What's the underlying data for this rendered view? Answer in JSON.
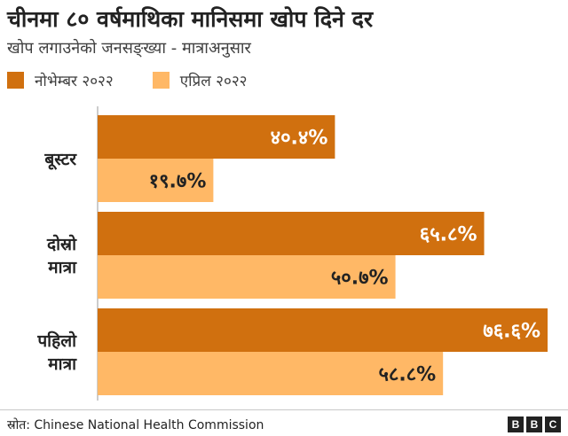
{
  "title": "चीनमा ८० वर्षमाथिका मानिसमा खोप दिने दर",
  "subtitle": "खोप लगाउनेको जनसङ्ख्या - मात्राअनुसार",
  "source": "स्रोत: Chinese National Health Commission",
  "logo": {
    "letters": [
      "B",
      "B",
      "C"
    ]
  },
  "colors": {
    "november": "#D0700F",
    "april": "#FFB866"
  },
  "chart_data": {
    "type": "bar",
    "orientation": "horizontal",
    "title": "चीनमा ८० वर्षमाथिका मानिसमा खोप दिने दर",
    "subtitle": "खोप लगाउनेको जनसङ्ख्या - मात्राअनुसार",
    "legend_position": "top-left",
    "grid": false,
    "xlim": [
      0,
      100
    ],
    "categories": [
      {
        "lines": [
          "बूस्टर"
        ]
      },
      {
        "lines": [
          "दोस्रो",
          "मात्रा"
        ]
      },
      {
        "lines": [
          "पहिलो",
          "मात्रा"
        ]
      }
    ],
    "series": [
      {
        "name": "नोभेम्बर २०२२",
        "color": "#D0700F",
        "values": [
          40.4,
          65.8,
          76.6
        ],
        "labels": [
          "४०.४%",
          "६५.८%",
          "७६.६%"
        ]
      },
      {
        "name": "एप्रिल २०२२",
        "color": "#FFB866",
        "values": [
          19.7,
          50.7,
          58.8
        ],
        "labels": [
          "१९.७%",
          "५०.७%",
          "५८.८%"
        ]
      }
    ]
  }
}
